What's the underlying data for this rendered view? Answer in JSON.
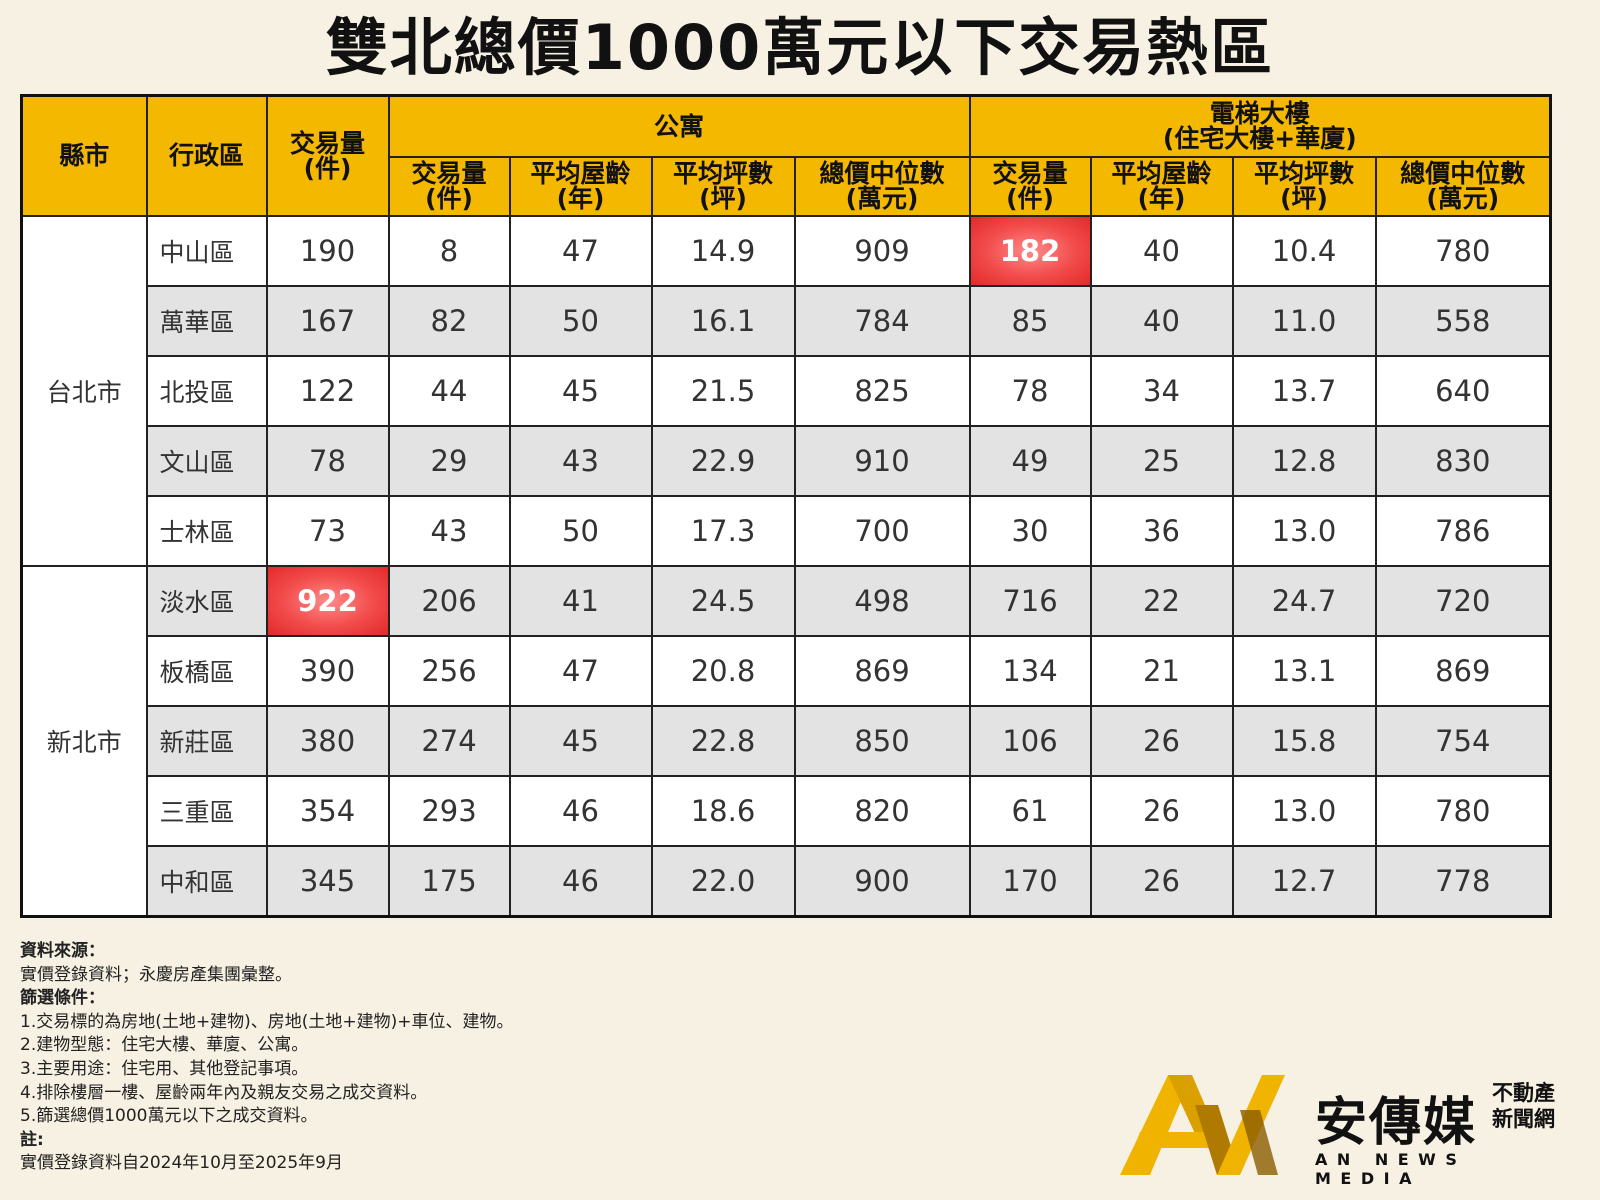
{
  "title": "雙北總價1000萬元以下交易熱區",
  "table": {
    "headers": {
      "county": "縣市",
      "district": "行政區",
      "total_count": "交易量\n(件)",
      "apartment_group": "公寓",
      "elevator_group": "電梯大樓\n(住宅大樓+華廈)",
      "sub": [
        "交易量\n(件)",
        "平均屋齡\n(年)",
        "平均坪數\n(坪)",
        "總價中位數\n(萬元)"
      ]
    },
    "cities": [
      {
        "name": "台北市",
        "rows": [
          {
            "district": "中山區",
            "total": "190",
            "apt": [
              "8",
              "47",
              "14.9",
              "909"
            ],
            "elev": [
              "182",
              "40",
              "10.4",
              "780"
            ],
            "hl_total": false,
            "hl_elev": true
          },
          {
            "district": "萬華區",
            "total": "167",
            "apt": [
              "82",
              "50",
              "16.1",
              "784"
            ],
            "elev": [
              "85",
              "40",
              "11.0",
              "558"
            ],
            "hl_total": false,
            "hl_elev": false
          },
          {
            "district": "北投區",
            "total": "122",
            "apt": [
              "44",
              "45",
              "21.5",
              "825"
            ],
            "elev": [
              "78",
              "34",
              "13.7",
              "640"
            ],
            "hl_total": false,
            "hl_elev": false
          },
          {
            "district": "文山區",
            "total": "78",
            "apt": [
              "29",
              "43",
              "22.9",
              "910"
            ],
            "elev": [
              "49",
              "25",
              "12.8",
              "830"
            ],
            "hl_total": false,
            "hl_elev": false
          },
          {
            "district": "士林區",
            "total": "73",
            "apt": [
              "43",
              "50",
              "17.3",
              "700"
            ],
            "elev": [
              "30",
              "36",
              "13.0",
              "786"
            ],
            "hl_total": false,
            "hl_elev": false
          }
        ]
      },
      {
        "name": "新北市",
        "rows": [
          {
            "district": "淡水區",
            "total": "922",
            "apt": [
              "206",
              "41",
              "24.5",
              "498"
            ],
            "elev": [
              "716",
              "22",
              "24.7",
              "720"
            ],
            "hl_total": true,
            "hl_elev": false
          },
          {
            "district": "板橋區",
            "total": "390",
            "apt": [
              "256",
              "47",
              "20.8",
              "869"
            ],
            "elev": [
              "134",
              "21",
              "13.1",
              "869"
            ],
            "hl_total": false,
            "hl_elev": false
          },
          {
            "district": "新莊區",
            "total": "380",
            "apt": [
              "274",
              "45",
              "22.8",
              "850"
            ],
            "elev": [
              "106",
              "26",
              "15.8",
              "754"
            ],
            "hl_total": false,
            "hl_elev": false
          },
          {
            "district": "三重區",
            "total": "354",
            "apt": [
              "293",
              "46",
              "18.6",
              "820"
            ],
            "elev": [
              "61",
              "26",
              "13.0",
              "780"
            ],
            "hl_total": false,
            "hl_elev": false
          },
          {
            "district": "中和區",
            "total": "345",
            "apt": [
              "175",
              "46",
              "22.0",
              "900"
            ],
            "elev": [
              "170",
              "26",
              "12.7",
              "778"
            ],
            "hl_total": false,
            "hl_elev": false
          }
        ]
      }
    ]
  },
  "notes": {
    "source_heading": "資料來源：",
    "source_text": "實價登錄資料；永慶房產集團彙整。",
    "criteria_heading": "篩選條件：",
    "criteria": [
      "1.交易標的為房地(土地+建物)、房地(土地+建物)+車位、建物。",
      "2.建物型態：住宅大樓、華廈、公寓。",
      "3.主要用途：住宅用、其他登記事項。",
      "4.排除樓層一樓、屋齡兩年內及親友交易之成交資料。",
      "5.篩選總價1000萬元以下之成交資料。"
    ],
    "remark_heading": "註:",
    "remark_text": "實價登錄資料自2024年10月至2025年9月"
  },
  "logo": {
    "cn": "安傳媒",
    "sub_line1": "不動產",
    "sub_line2": "新聞網",
    "en": "AN NEWS MEDIA",
    "colors": {
      "gold": "#f0b400",
      "dark_gold": "#b07a00"
    }
  },
  "colors": {
    "header_bg": "#f5b800",
    "highlight": "#f24a4a",
    "stripe": "#e3e3e3",
    "page_bg": "#f7f1e3"
  }
}
